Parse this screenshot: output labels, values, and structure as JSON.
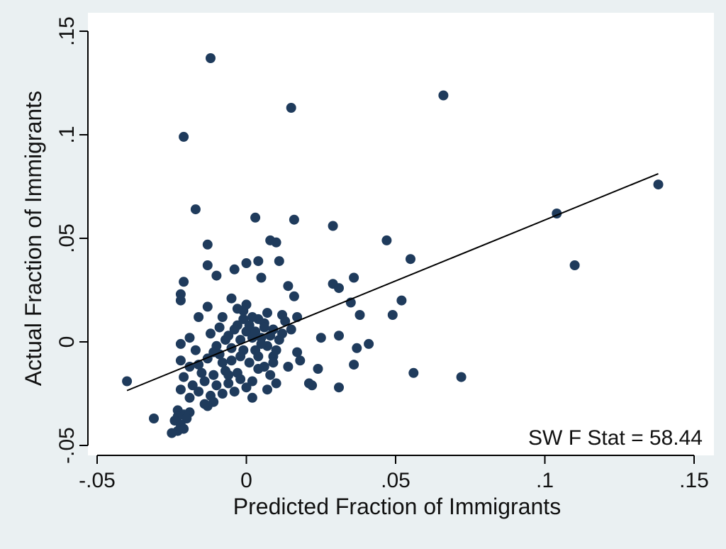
{
  "chart_data": {
    "type": "scatter",
    "xlabel": "Predicted Fraction of Immigrants",
    "ylabel": "Actual Fraction of Immigrants",
    "xlim": [
      -0.05,
      0.15
    ],
    "ylim": [
      -0.05,
      0.15
    ],
    "x_ticks": [
      -0.05,
      0,
      0.05,
      0.1,
      0.15
    ],
    "x_tick_labels": [
      "-.05",
      "0",
      ".05",
      ".1",
      ".15"
    ],
    "y_ticks": [
      -0.05,
      0,
      0.05,
      0.1,
      0.15
    ],
    "y_tick_labels": [
      "-.05",
      "0",
      ".05",
      ".1",
      ".15"
    ],
    "grid": false,
    "annotation": "SW F Stat = 58.44",
    "colors": {
      "background": "#eaf0f2",
      "plot_bg": "#ffffff",
      "marker": "#1f3b5c",
      "fit_line": "#000000"
    },
    "fit_line": {
      "x": [
        -0.04,
        0.138
      ],
      "y": [
        -0.0235,
        0.0812
      ]
    },
    "points": [
      [
        -0.012,
        0.137
      ],
      [
        0.066,
        0.119
      ],
      [
        0.015,
        0.113
      ],
      [
        -0.021,
        0.099
      ],
      [
        0.138,
        0.076
      ],
      [
        -0.017,
        0.064
      ],
      [
        0.104,
        0.062
      ],
      [
        0.003,
        0.06
      ],
      [
        0.016,
        0.059
      ],
      [
        0.029,
        0.056
      ],
      [
        0.047,
        0.049
      ],
      [
        0.008,
        0.049
      ],
      [
        0.01,
        0.048
      ],
      [
        -0.013,
        0.047
      ],
      [
        0.055,
        0.04
      ],
      [
        0.004,
        0.039
      ],
      [
        0.011,
        0.039
      ],
      [
        0.11,
        0.037
      ],
      [
        -0.013,
        0.037
      ],
      [
        0.0,
        0.038
      ],
      [
        -0.004,
        0.035
      ],
      [
        -0.01,
        0.032
      ],
      [
        0.036,
        0.031
      ],
      [
        0.005,
        0.031
      ],
      [
        -0.021,
        0.029
      ],
      [
        0.029,
        0.028
      ],
      [
        0.031,
        0.026
      ],
      [
        0.014,
        0.027
      ],
      [
        -0.022,
        0.023
      ],
      [
        0.016,
        0.022
      ],
      [
        -0.005,
        0.021
      ],
      [
        0.052,
        0.02
      ],
      [
        0.035,
        0.019
      ],
      [
        -0.022,
        0.02
      ],
      [
        -0.013,
        0.017
      ],
      [
        0.038,
        0.013
      ],
      [
        0.049,
        0.013
      ],
      [
        0.017,
        0.012
      ],
      [
        -0.016,
        0.012
      ],
      [
        0.007,
        0.014
      ],
      [
        -0.008,
        0.012
      ],
      [
        0.013,
        0.01
      ],
      [
        -0.001,
        0.015
      ],
      [
        0.004,
        0.011
      ],
      [
        0.002,
        0.012
      ],
      [
        -0.003,
        0.008
      ],
      [
        0.006,
        0.009
      ],
      [
        0.009,
        0.006
      ],
      [
        0.015,
        0.006
      ],
      [
        0.012,
        0.004
      ],
      [
        0.025,
        0.002
      ],
      [
        0.031,
        0.003
      ],
      [
        0.041,
        -0.001
      ],
      [
        0.037,
        -0.003
      ],
      [
        -0.019,
        0.002
      ],
      [
        -0.012,
        0.004
      ],
      [
        0.0,
        0.005
      ],
      [
        0.005,
        0.002
      ],
      [
        0.007,
        -0.002
      ],
      [
        0.017,
        -0.005
      ],
      [
        0.018,
        -0.009
      ],
      [
        -0.022,
        -0.001
      ],
      [
        -0.017,
        -0.004
      ],
      [
        -0.01,
        -0.002
      ],
      [
        -0.006,
        0.003
      ],
      [
        -0.002,
        0.001
      ],
      [
        0.003,
        -0.004
      ],
      [
        0.009,
        -0.007
      ],
      [
        0.036,
        -0.011
      ],
      [
        0.024,
        -0.013
      ],
      [
        0.056,
        -0.015
      ],
      [
        0.072,
        -0.017
      ],
      [
        0.014,
        -0.012
      ],
      [
        -0.04,
        -0.019
      ],
      [
        -0.022,
        -0.009
      ],
      [
        -0.016,
        -0.011
      ],
      [
        -0.013,
        -0.008
      ],
      [
        -0.009,
        -0.006
      ],
      [
        -0.005,
        -0.009
      ],
      [
        -0.001,
        -0.004
      ],
      [
        0.001,
        -0.01
      ],
      [
        0.004,
        -0.007
      ],
      [
        0.006,
        -0.012
      ],
      [
        0.008,
        -0.016
      ],
      [
        0.002,
        -0.019
      ],
      [
        -0.003,
        -0.015
      ],
      [
        -0.007,
        -0.014
      ],
      [
        -0.011,
        -0.016
      ],
      [
        -0.015,
        -0.015
      ],
      [
        -0.019,
        -0.012
      ],
      [
        -0.021,
        -0.017
      ],
      [
        -0.018,
        -0.021
      ],
      [
        -0.014,
        -0.019
      ],
      [
        -0.01,
        -0.021
      ],
      [
        -0.006,
        -0.02
      ],
      [
        -0.002,
        -0.018
      ],
      [
        0.0,
        -0.022
      ],
      [
        -0.004,
        -0.024
      ],
      [
        0.002,
        -0.027
      ],
      [
        -0.008,
        -0.025
      ],
      [
        -0.012,
        -0.026
      ],
      [
        -0.016,
        -0.024
      ],
      [
        -0.019,
        -0.027
      ],
      [
        -0.022,
        -0.023
      ],
      [
        -0.011,
        -0.029
      ],
      [
        -0.013,
        -0.031
      ],
      [
        -0.014,
        -0.03
      ],
      [
        0.021,
        -0.02
      ],
      [
        0.022,
        -0.021
      ],
      [
        0.031,
        -0.022
      ],
      [
        0.007,
        -0.023
      ],
      [
        0.01,
        -0.02
      ],
      [
        -0.023,
        -0.033
      ],
      [
        -0.021,
        -0.035
      ],
      [
        -0.019,
        -0.034
      ],
      [
        -0.023,
        -0.036
      ],
      [
        -0.024,
        -0.038
      ],
      [
        -0.02,
        -0.037
      ],
      [
        -0.022,
        -0.04
      ],
      [
        -0.021,
        -0.042
      ],
      [
        -0.023,
        -0.043
      ],
      [
        -0.025,
        -0.044
      ],
      [
        -0.031,
        -0.037
      ],
      [
        -0.001,
        0.011
      ],
      [
        0.001,
        0.008
      ],
      [
        0.003,
        0.005
      ],
      [
        -0.004,
        0.006
      ],
      [
        0.005,
        -0.001
      ],
      [
        -0.007,
        0.001
      ],
      [
        0.008,
        0.003
      ],
      [
        -0.009,
        0.007
      ],
      [
        0.01,
        -0.004
      ],
      [
        -0.002,
        -0.007
      ],
      [
        0.002,
        0.002
      ],
      [
        -0.005,
        -0.003
      ],
      [
        0.006,
        0.007
      ],
      [
        0.011,
        0.001
      ],
      [
        -0.011,
        -0.005
      ],
      [
        -0.008,
        -0.01
      ],
      [
        0.004,
        -0.013
      ],
      [
        0.009,
        -0.01
      ],
      [
        -0.006,
        -0.016
      ],
      [
        0.012,
        0.013
      ],
      [
        0.0,
        0.018
      ],
      [
        -0.003,
        0.016
      ]
    ]
  }
}
